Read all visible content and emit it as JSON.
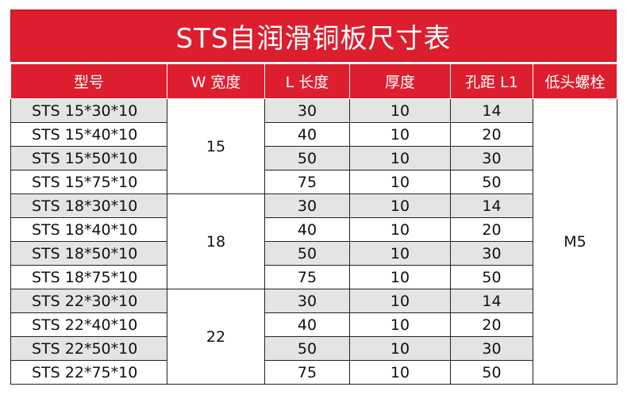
{
  "title": "STS自润滑铜板尺寸表",
  "headers": [
    "型号",
    "W 宽度",
    "L 长度",
    "厚度",
    "孔距 L1",
    "低头螺栓"
  ],
  "rows": [
    {
      "model": "STS 15*30*10",
      "L": "30",
      "thickness": "10",
      "L1": "14"
    },
    {
      "model": "STS 15*40*10",
      "L": "40",
      "thickness": "10",
      "L1": "20"
    },
    {
      "model": "STS 15*50*10",
      "L": "50",
      "thickness": "10",
      "L1": "30"
    },
    {
      "model": "STS 15*75*10",
      "L": "75",
      "thickness": "10",
      "L1": "50"
    },
    {
      "model": "STS 18*30*10",
      "L": "30",
      "thickness": "10",
      "L1": "14"
    },
    {
      "model": "STS 18*40*10",
      "L": "40",
      "thickness": "10",
      "L1": "20"
    },
    {
      "model": "STS 18*50*10",
      "L": "50",
      "thickness": "10",
      "L1": "30"
    },
    {
      "model": "STS 18*75*10",
      "L": "75",
      "thickness": "10",
      "L1": "50"
    },
    {
      "model": "STS 22*30*10",
      "L": "30",
      "thickness": "10",
      "L1": "14"
    },
    {
      "model": "STS 22*40*10",
      "L": "40",
      "thickness": "10",
      "L1": "20"
    },
    {
      "model": "STS 22*50*10",
      "L": "50",
      "thickness": "10",
      "L1": "30"
    },
    {
      "model": "STS 22*75*10",
      "L": "75",
      "thickness": "10",
      "L1": "50"
    }
  ],
  "widths": [
    "15",
    "18",
    "22"
  ],
  "bolt": "M5",
  "colors": {
    "header_red": "#dc1e2e",
    "row_shade": "#e4e4e4"
  }
}
